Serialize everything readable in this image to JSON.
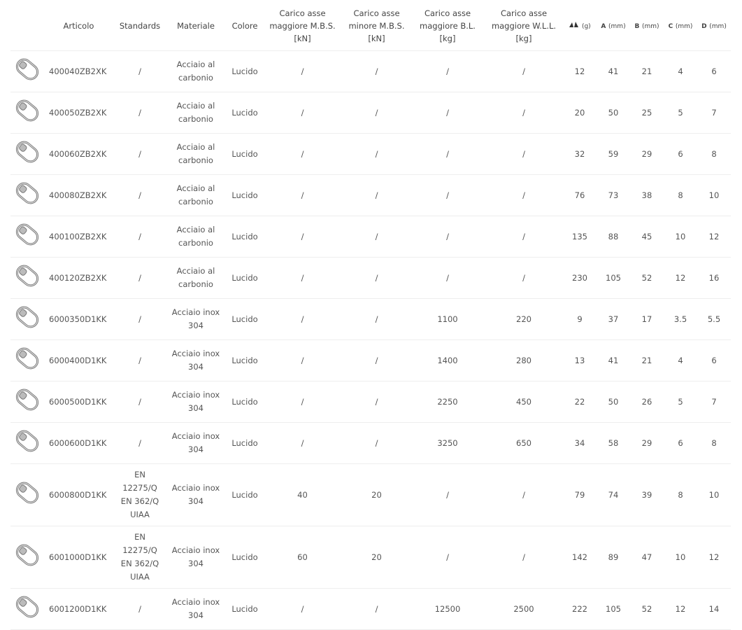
{
  "table": {
    "headers": [
      "Articolo",
      "Standards",
      "Materiale",
      "Colore",
      "Carico asse maggiore M.B.S. [kN]",
      "Carico asse minore M.B.S. [kN]",
      "Carico asse maggiore B.L. [kg]",
      "Carico asse maggiore W.L.L. [kg]",
      {
        "unit": "(g)"
      },
      {
        "letter": "A",
        "unit": "(mm)"
      },
      {
        "letter": "B",
        "unit": "(mm)"
      },
      {
        "letter": "C",
        "unit": "(mm)"
      },
      {
        "letter": "D",
        "unit": "(mm)"
      }
    ],
    "rows": [
      [
        "400040ZB2XK",
        "/",
        "Acciaio al carbonio",
        "Lucido",
        "/",
        "/",
        "/",
        "/",
        12,
        41,
        21,
        4,
        6
      ],
      [
        "400050ZB2XK",
        "/",
        "Acciaio al carbonio",
        "Lucido",
        "/",
        "/",
        "/",
        "/",
        20,
        50,
        25,
        5,
        7
      ],
      [
        "400060ZB2XK",
        "/",
        "Acciaio al carbonio",
        "Lucido",
        "/",
        "/",
        "/",
        "/",
        32,
        59,
        29,
        6,
        8
      ],
      [
        "400080ZB2XK",
        "/",
        "Acciaio al carbonio",
        "Lucido",
        "/",
        "/",
        "/",
        "/",
        76,
        73,
        38,
        8,
        10
      ],
      [
        "400100ZB2XK",
        "/",
        "Acciaio al carbonio",
        "Lucido",
        "/",
        "/",
        "/",
        "/",
        135,
        88,
        45,
        10,
        12
      ],
      [
        "400120ZB2XK",
        "/",
        "Acciaio al carbonio",
        "Lucido",
        "/",
        "/",
        "/",
        "/",
        230,
        105,
        52,
        12,
        16
      ],
      [
        "6000350D1KK",
        "/",
        "Acciaio inox 304",
        "Lucido",
        "/",
        "/",
        1100,
        220,
        9,
        37,
        17,
        3.5,
        5.5
      ],
      [
        "6000400D1KK",
        "/",
        "Acciaio inox 304",
        "Lucido",
        "/",
        "/",
        1400,
        280,
        13,
        41,
        21,
        4,
        6
      ],
      [
        "6000500D1KK",
        "/",
        "Acciaio inox 304",
        "Lucido",
        "/",
        "/",
        2250,
        450,
        22,
        50,
        26,
        5,
        7
      ],
      [
        "6000600D1KK",
        "/",
        "Acciaio inox 304",
        "Lucido",
        "/",
        "/",
        3250,
        650,
        34,
        58,
        29,
        6,
        8
      ],
      [
        "6000800D1KK",
        "EN 12275/Q EN 362/Q UIAA",
        "Acciaio inox 304",
        "Lucido",
        40,
        20,
        "/",
        "/",
        79,
        74,
        39,
        8,
        10
      ],
      [
        "6001000D1KK",
        "EN 12275/Q EN 362/Q UIAA",
        "Acciaio inox 304",
        "Lucido",
        60,
        20,
        "/",
        "/",
        142,
        89,
        47,
        10,
        12
      ],
      [
        "6001200D1KK",
        "/",
        "Acciaio inox 304",
        "Lucido",
        "/",
        "/",
        12500,
        2500,
        222,
        105,
        52,
        12,
        14
      ]
    ]
  }
}
